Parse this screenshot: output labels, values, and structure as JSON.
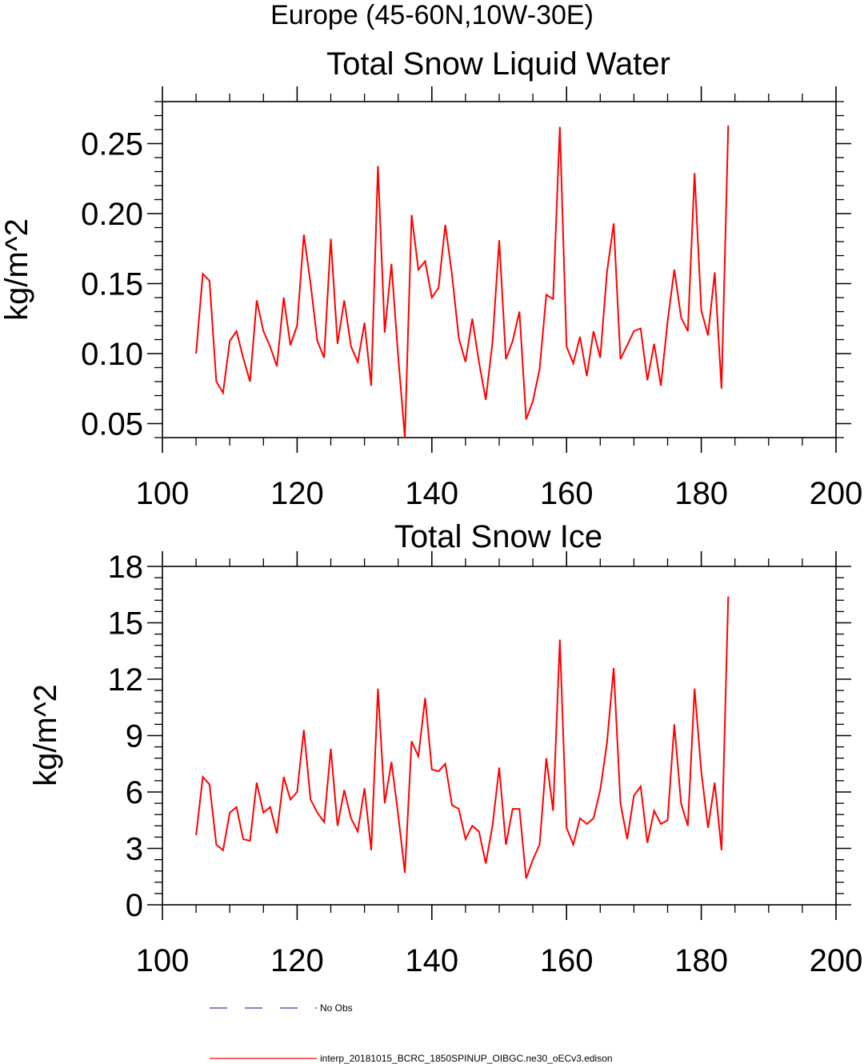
{
  "figure": {
    "title": "Europe (45-60N,10W-30E)"
  },
  "legend": [
    {
      "label": "No Obs",
      "color": "#3a3aa8",
      "dash": "dashed"
    },
    {
      "label": "interp_20181015_BCRC_1850SPINUP_OIBGC.ne30_oECv3.edison",
      "color": "#ff0000",
      "dash": "solid"
    }
  ],
  "chart_data": [
    {
      "type": "line",
      "title": "Total Snow Liquid Water",
      "xlabel": "",
      "ylabel": "kg/m^2",
      "xlim": [
        100,
        200
      ],
      "ylim": [
        0.04,
        0.28
      ],
      "x_ticks": [
        100,
        120,
        140,
        160,
        180,
        200
      ],
      "x_tick_labels": [
        "100",
        "120",
        "140",
        "160",
        "180",
        "200"
      ],
      "y_ticks": [
        0.05,
        0.1,
        0.15,
        0.2,
        0.25
      ],
      "y_tick_labels": [
        "0.05",
        "0.10",
        "0.15",
        "0.20",
        "0.25"
      ],
      "x_minor_step": 5,
      "y_minor_step": 0.01,
      "grid": false,
      "series": [
        {
          "name": "interp_20181015_BCRC_1850SPINUP_OIBGC.ne30_oECv3.edison",
          "color": "#ff0000",
          "x": [
            105,
            106,
            107,
            108,
            109,
            110,
            111,
            112,
            113,
            114,
            115,
            116,
            117,
            118,
            119,
            120,
            121,
            122,
            123,
            124,
            125,
            126,
            127,
            128,
            129,
            130,
            131,
            132,
            133,
            134,
            135,
            136,
            137,
            138,
            139,
            140,
            141,
            142,
            143,
            144,
            145,
            146,
            147,
            148,
            149,
            150,
            151,
            152,
            153,
            154,
            155,
            156,
            157,
            158,
            159,
            160,
            161,
            162,
            163,
            164,
            165,
            166,
            167,
            168,
            169,
            170,
            171,
            172,
            173,
            174,
            175,
            176,
            177,
            178,
            179,
            180,
            181,
            182,
            183,
            184
          ],
          "values": [
            0.1,
            0.157,
            0.152,
            0.08,
            0.072,
            0.109,
            0.116,
            0.097,
            0.08,
            0.138,
            0.116,
            0.105,
            0.091,
            0.14,
            0.106,
            0.12,
            0.185,
            0.15,
            0.109,
            0.097,
            0.182,
            0.107,
            0.138,
            0.105,
            0.094,
            0.122,
            0.077,
            0.234,
            0.115,
            0.164,
            0.098,
            0.04,
            0.199,
            0.16,
            0.166,
            0.14,
            0.147,
            0.192,
            0.156,
            0.111,
            0.094,
            0.125,
            0.094,
            0.067,
            0.108,
            0.181,
            0.096,
            0.109,
            0.13,
            0.053,
            0.066,
            0.089,
            0.142,
            0.139,
            0.262,
            0.105,
            0.093,
            0.112,
            0.084,
            0.116,
            0.097,
            0.158,
            0.193,
            0.096,
            0.106,
            0.116,
            0.118,
            0.081,
            0.107,
            0.077,
            0.123,
            0.16,
            0.126,
            0.116,
            0.229,
            0.131,
            0.113,
            0.158,
            0.075,
            0.263
          ]
        }
      ]
    },
    {
      "type": "line",
      "title": "Total Snow Ice",
      "xlabel": "",
      "ylabel": "kg/m^2",
      "xlim": [
        100,
        200
      ],
      "ylim": [
        0,
        18
      ],
      "x_ticks": [
        100,
        120,
        140,
        160,
        180,
        200
      ],
      "x_tick_labels": [
        "100",
        "120",
        "140",
        "160",
        "180",
        "200"
      ],
      "y_ticks": [
        0,
        3,
        6,
        9,
        12,
        15,
        18
      ],
      "y_tick_labels": [
        "0",
        "3",
        "6",
        "9",
        "12",
        "15",
        "18"
      ],
      "x_minor_step": 5,
      "y_minor_step": 0.6,
      "grid": false,
      "series": [
        {
          "name": "interp_20181015_BCRC_1850SPINUP_OIBGC.ne30_oECv3.edison",
          "color": "#ff0000",
          "x": [
            105,
            106,
            107,
            108,
            109,
            110,
            111,
            112,
            113,
            114,
            115,
            116,
            117,
            118,
            119,
            120,
            121,
            122,
            123,
            124,
            125,
            126,
            127,
            128,
            129,
            130,
            131,
            132,
            133,
            134,
            135,
            136,
            137,
            138,
            139,
            140,
            141,
            142,
            143,
            144,
            145,
            146,
            147,
            148,
            149,
            150,
            151,
            152,
            153,
            154,
            155,
            156,
            157,
            158,
            159,
            160,
            161,
            162,
            163,
            164,
            165,
            166,
            167,
            168,
            169,
            170,
            171,
            172,
            173,
            174,
            175,
            176,
            177,
            178,
            179,
            180,
            181,
            182,
            183,
            184
          ],
          "values": [
            3.7,
            6.8,
            6.4,
            3.2,
            2.9,
            4.9,
            5.2,
            3.5,
            3.4,
            6.5,
            4.9,
            5.2,
            3.8,
            6.8,
            5.6,
            6.0,
            9.3,
            5.6,
            4.9,
            4.4,
            8.3,
            4.2,
            6.1,
            4.6,
            3.9,
            6.2,
            2.9,
            11.5,
            5.4,
            7.6,
            4.8,
            1.7,
            8.7,
            7.9,
            11.0,
            7.2,
            7.1,
            7.5,
            5.3,
            5.1,
            3.5,
            4.2,
            3.9,
            2.2,
            4.2,
            7.3,
            3.2,
            5.1,
            5.1,
            1.4,
            2.4,
            3.2,
            7.8,
            5.0,
            14.1,
            4.1,
            3.2,
            4.6,
            4.3,
            4.6,
            6.1,
            8.6,
            12.6,
            5.4,
            3.5,
            5.8,
            6.3,
            3.3,
            5.0,
            4.3,
            4.5,
            9.6,
            5.4,
            4.2,
            11.5,
            7.1,
            4.1,
            6.5,
            2.9,
            16.4
          ]
        }
      ]
    }
  ]
}
